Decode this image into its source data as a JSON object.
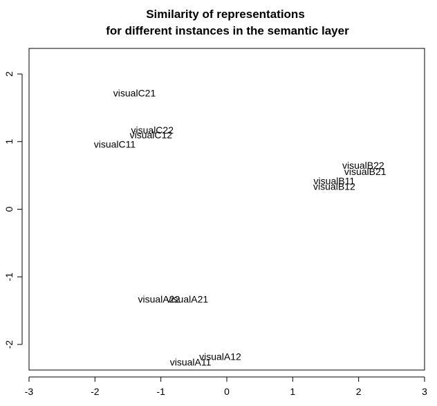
{
  "chart_data": {
    "type": "scatter",
    "title_lines": [
      "Similarity of representations",
      "for different instances in the semantic layer"
    ],
    "xlabel": "",
    "ylabel": "",
    "xlim": [
      -3,
      3
    ],
    "ylim": [
      -2.35,
      2.35
    ],
    "x_ticks": [
      -3,
      -2,
      -1,
      0,
      1,
      2,
      3
    ],
    "y_ticks": [
      -2,
      -1,
      0,
      1,
      2
    ],
    "grid": false,
    "points": [
      {
        "label": "visualC21",
        "x": -1.4,
        "y": 1.72
      },
      {
        "label": "visualC22",
        "x": -1.13,
        "y": 1.17
      },
      {
        "label": "visualC12",
        "x": -1.15,
        "y": 1.1
      },
      {
        "label": "visualC11",
        "x": -1.7,
        "y": 0.96
      },
      {
        "label": "visualB22",
        "x": 2.07,
        "y": 0.65
      },
      {
        "label": "visualB21",
        "x": 2.1,
        "y": 0.56
      },
      {
        "label": "visualB11",
        "x": 1.63,
        "y": 0.42
      },
      {
        "label": "visualB12",
        "x": 1.63,
        "y": 0.34
      },
      {
        "label": "visualA22",
        "x": -1.03,
        "y": -1.33
      },
      {
        "label": "visualA21",
        "x": -0.6,
        "y": -1.33
      },
      {
        "label": "visualA12",
        "x": -0.1,
        "y": -2.18
      },
      {
        "label": "visualA11",
        "x": -0.55,
        "y": -2.26
      }
    ]
  }
}
